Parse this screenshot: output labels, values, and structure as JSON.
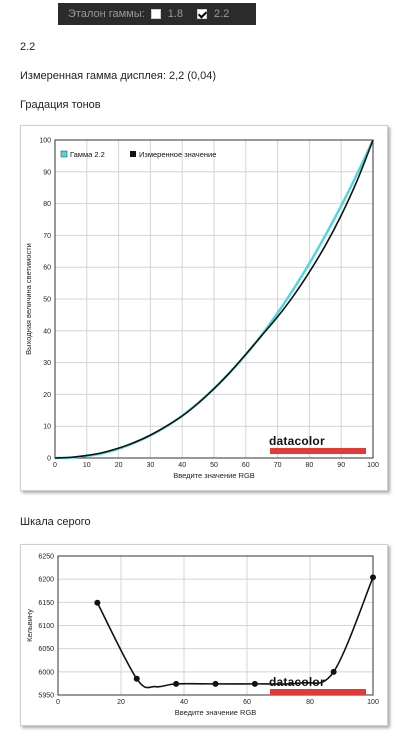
{
  "gamma_ref": {
    "label": "Эталон гаммы:",
    "options": [
      {
        "value": "1.8",
        "checked": false
      },
      {
        "value": "2.2",
        "checked": true
      }
    ]
  },
  "value_title": "2.2",
  "measured_text": "Измеренная гамма дисплея: 2,2 (0,04)",
  "tone_section_title": "Градация тонов",
  "gray_section_title": "Шкала серого",
  "brand": "datacolor",
  "colors": {
    "gamma_curve": "#4ad8e0",
    "measured_curve": "#111111",
    "brand_red": "#e03a3a"
  },
  "chart_data": [
    {
      "type": "line",
      "xlabel": "Введите значение RGB",
      "ylabel": "Выходная величина светимости",
      "xlim": [
        0,
        100
      ],
      "ylim": [
        0,
        100
      ],
      "x_ticks": [
        "0",
        "10",
        "20",
        "30",
        "40",
        "50",
        "60",
        "70",
        "80",
        "90",
        "100"
      ],
      "y_ticks": [
        "0",
        "10",
        "20",
        "30",
        "40",
        "50",
        "60",
        "70",
        "80",
        "90",
        "100"
      ],
      "grid": true,
      "legend_position": "top-left",
      "series": [
        {
          "name": "Гамма 2.2",
          "x": [
            0,
            5,
            10,
            15,
            20,
            25,
            30,
            35,
            40,
            45,
            50,
            55,
            60,
            65,
            70,
            75,
            80,
            85,
            90,
            95,
            100
          ],
          "y": [
            0,
            0.14,
            0.63,
            1.5,
            2.9,
            4.8,
            7.1,
            9.9,
            13.3,
            17.3,
            21.8,
            26.9,
            32.5,
            38.7,
            45.6,
            53.1,
            61.2,
            70,
            79.3,
            89.3,
            100
          ]
        },
        {
          "name": "Измеренное значение",
          "x": [
            0,
            5,
            10,
            15,
            20,
            25,
            30,
            35,
            40,
            45,
            50,
            55,
            60,
            65,
            70,
            75,
            80,
            85,
            90,
            95,
            100
          ],
          "y": [
            0,
            0.2,
            0.8,
            1.7,
            3.1,
            4.9,
            7.2,
            10,
            13.2,
            17.2,
            21.8,
            26.9,
            32.6,
            38.5,
            44.4,
            51,
            58.5,
            66.8,
            76.3,
            87.2,
            100
          ]
        }
      ]
    },
    {
      "type": "line",
      "xlabel": "Введите значение RGB",
      "ylabel": "Кельвину",
      "xlim": [
        0,
        100
      ],
      "ylim": [
        5950,
        6250
      ],
      "x_ticks": [
        "0",
        "20",
        "40",
        "60",
        "80",
        "100"
      ],
      "y_ticks": [
        "5950",
        "6000",
        "6050",
        "6100",
        "6150",
        "6200",
        "6250"
      ],
      "grid": true,
      "points": {
        "x": [
          12.5,
          25,
          37.5,
          50,
          62.5,
          87.5,
          100
        ],
        "y": [
          6149,
          5985,
          5974,
          5974,
          5974,
          6000,
          6204
        ]
      }
    }
  ]
}
